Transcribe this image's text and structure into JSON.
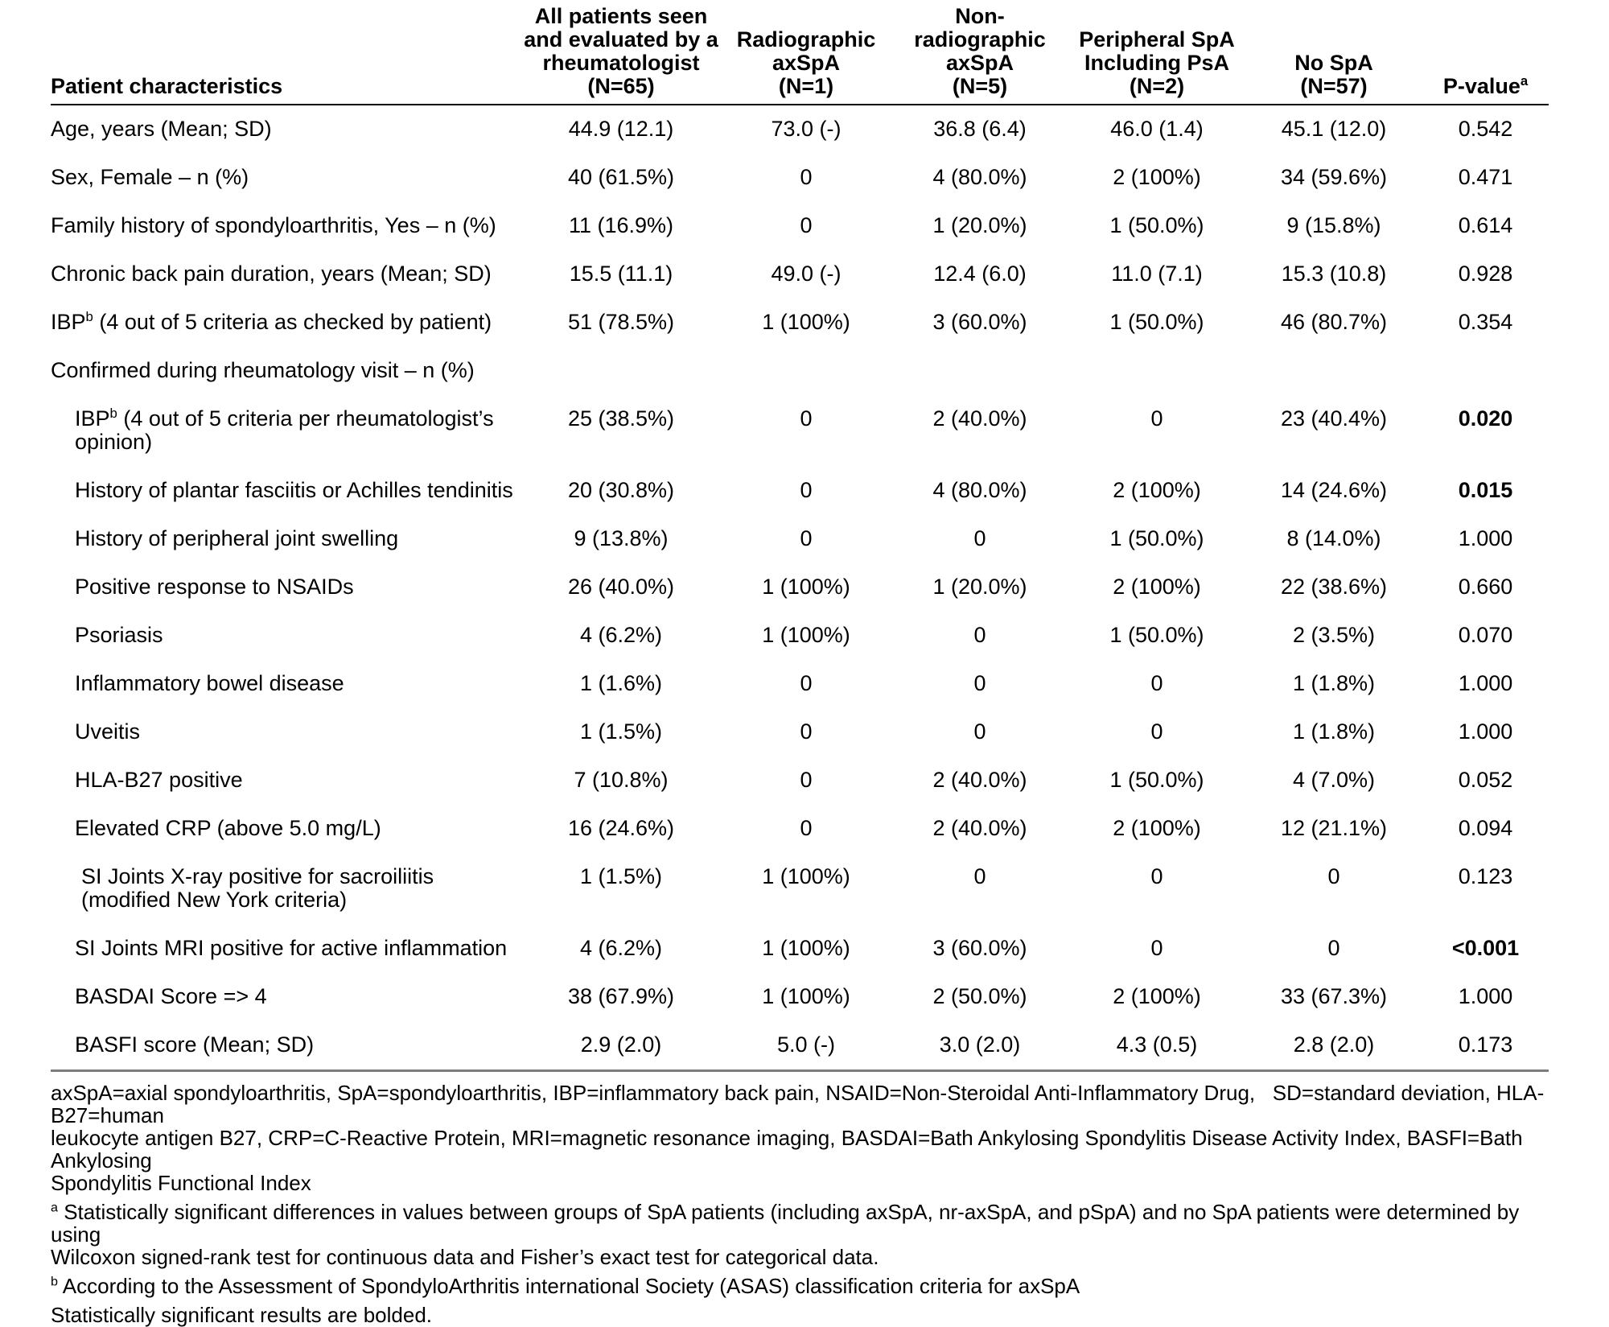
{
  "table": {
    "columns": [
      {
        "label_lines": [
          "Patient characteristics"
        ],
        "align": "left",
        "sup": ""
      },
      {
        "label_lines": [
          "All patients seen",
          "and evaluated by a",
          "rheumatologist",
          "(N=65)"
        ],
        "align": "center",
        "sup": ""
      },
      {
        "label_lines": [
          "Radiographic",
          "axSpA",
          "(N=1)"
        ],
        "align": "center",
        "sup": ""
      },
      {
        "label_lines": [
          "Non-radiographic",
          "axSpA",
          "(N=5)"
        ],
        "align": "center",
        "sup": ""
      },
      {
        "label_lines": [
          "Peripheral SpA",
          "Including PsA",
          "(N=2)"
        ],
        "align": "center",
        "sup": ""
      },
      {
        "label_lines": [
          "No SpA",
          "(N=57)"
        ],
        "align": "center",
        "sup": ""
      },
      {
        "label_lines": [
          "P-value"
        ],
        "align": "center",
        "sup": "a"
      }
    ],
    "rows": [
      {
        "label": "Age, years (Mean; SD)",
        "values": [
          "44.9 (12.1)",
          "73.0 (-)",
          "36.8 (6.4)",
          "46.0 (1.4)",
          "45.1 (12.0)"
        ],
        "p_value": "0.542",
        "p_bold": false,
        "indent": 0,
        "section": false
      },
      {
        "label": "Sex, Female – n (%)",
        "values": [
          "40 (61.5%)",
          "0",
          "4 (80.0%)",
          "2 (100%)",
          "34 (59.6%)"
        ],
        "p_value": "0.471",
        "p_bold": false,
        "indent": 0,
        "section": false
      },
      {
        "label": "Family history of spondyloarthritis, Yes – n (%)",
        "values": [
          "11 (16.9%)",
          "0",
          "1 (20.0%)",
          "1 (50.0%)",
          "9 (15.8%)"
        ],
        "p_value": "0.614",
        "p_bold": false,
        "indent": 0,
        "section": false
      },
      {
        "label": "Chronic back pain duration, years (Mean; SD)",
        "values": [
          "15.5 (11.1)",
          "49.0 (-)",
          "12.4 (6.0)",
          "11.0 (7.1)",
          "15.3 (10.8)"
        ],
        "p_value": "0.928",
        "p_bold": false,
        "indent": 0,
        "section": false
      },
      {
        "label": "IBP",
        "label_sup": "b",
        "label_rest": " (4 out of 5 criteria as checked by patient)",
        "values": [
          "51 (78.5%)",
          "1 (100%)",
          "3 (60.0%)",
          "1 (50.0%)",
          "46 (80.7%)"
        ],
        "p_value": "0.354",
        "p_bold": false,
        "indent": 0,
        "section": false
      },
      {
        "label": "Confirmed during rheumatology visit – n (%)",
        "section": true,
        "indent": 0
      },
      {
        "label": "IBP",
        "label_sup": "b",
        "label_rest": " (4 out of 5 criteria per rheumatologist’s opinion)",
        "values": [
          "25 (38.5%)",
          "0",
          "2 (40.0%)",
          "0",
          "23 (40.4%)"
        ],
        "p_value": "0.020",
        "p_bold": true,
        "indent": 1,
        "section": false
      },
      {
        "label": "History of plantar fasciitis or Achilles tendinitis",
        "values": [
          "20 (30.8%)",
          "0",
          "4 (80.0%)",
          "2 (100%)",
          "14 (24.6%)"
        ],
        "p_value": "0.015",
        "p_bold": true,
        "indent": 1,
        "section": false
      },
      {
        "label": "History of peripheral joint swelling",
        "values": [
          "9 (13.8%)",
          "0",
          "0",
          "1 (50.0%)",
          "8 (14.0%)"
        ],
        "p_value": "1.000",
        "p_bold": false,
        "indent": 1,
        "section": false
      },
      {
        "label": "Positive response to NSAIDs",
        "values": [
          "26 (40.0%)",
          "1 (100%)",
          "1 (20.0%)",
          "2 (100%)",
          "22 (38.6%)"
        ],
        "p_value": "0.660",
        "p_bold": false,
        "indent": 1,
        "section": false
      },
      {
        "label": "Psoriasis",
        "values": [
          "4 (6.2%)",
          "1 (100%)",
          "0",
          "1 (50.0%)",
          "2 (3.5%)"
        ],
        "p_value": "0.070",
        "p_bold": false,
        "indent": 1,
        "section": false
      },
      {
        "label": "Inflammatory bowel disease",
        "values": [
          "1 (1.6%)",
          "0",
          "0",
          "0",
          "1 (1.8%)"
        ],
        "p_value": "1.000",
        "p_bold": false,
        "indent": 1,
        "section": false
      },
      {
        "label": "Uveitis",
        "values": [
          "1 (1.5%)",
          "0",
          "0",
          "0",
          "1 (1.8%)"
        ],
        "p_value": "1.000",
        "p_bold": false,
        "indent": 1,
        "section": false
      },
      {
        "label": "HLA-B27 positive",
        "values": [
          "7 (10.8%)",
          "0",
          "2 (40.0%)",
          "1 (50.0%)",
          "4 (7.0%)"
        ],
        "p_value": "0.052",
        "p_bold": false,
        "indent": 1,
        "section": false
      },
      {
        "label": "Elevated CRP (above 5.0 mg/L)",
        "values": [
          "16 (24.6%)",
          "0",
          "2 (40.0%)",
          "2 (100%)",
          "12 (21.1%)"
        ],
        "p_value": "0.094",
        "p_bold": false,
        "indent": 1,
        "section": false
      },
      {
        "label": "SI Joints X-ray positive for sacroiliitis (modified New York criteria)",
        "values": [
          "1 (1.5%)",
          "1 (100%)",
          "0",
          "0",
          "0"
        ],
        "p_value": "0.123",
        "p_bold": false,
        "indent": 2,
        "section": false
      },
      {
        "label": "SI Joints MRI positive for active inflammation",
        "values": [
          "4 (6.2%)",
          "1 (100%)",
          "3 (60.0%)",
          "0",
          "0"
        ],
        "p_value": "<0.001",
        "p_bold": true,
        "indent": 1,
        "section": false
      },
      {
        "label": "BASDAI Score => 4",
        "values": [
          "38 (67.9%)",
          "1 (100%)",
          "2 (50.0%)",
          "2 (100%)",
          "33 (67.3%)"
        ],
        "p_value": "1.000",
        "p_bold": false,
        "indent": 1,
        "section": false
      },
      {
        "label": "BASFI score (Mean; SD)",
        "values": [
          "2.9 (2.0)",
          "5.0 (-)",
          "3.0 (2.0)",
          "4.3 (0.5)",
          "2.8 (2.0)"
        ],
        "p_value": "0.173",
        "p_bold": false,
        "indent": 1,
        "section": false
      }
    ],
    "footnotes": [
      {
        "sup": "",
        "lines": [
          "axSpA=axial spondyloarthritis, SpA=spondyloarthritis, IBP=inflammatory back pain, NSAID=Non-Steroidal Anti-Inflammatory Drug,   SD=standard deviation, HLA-B27=human",
          "leukocyte antigen B27, CRP=C-Reactive Protein, MRI=magnetic resonance imaging, BASDAI=Bath Ankylosing Spondylitis Disease Activity Index, BASFI=Bath Ankylosing",
          "Spondylitis Functional Index"
        ]
      },
      {
        "sup": "a",
        "lines": [
          "Statistically significant differences in values between groups of SpA patients (including axSpA, nr-axSpA, and pSpA) and no SpA patients were determined by using",
          "Wilcoxon signed-rank test for continuous data and Fisher’s exact test for categorical data."
        ]
      },
      {
        "sup": "b",
        "lines": [
          "According to the Assessment of SpondyloArthritis international Society (ASAS) classification criteria for axSpA"
        ]
      },
      {
        "sup": "",
        "lines": [
          "Statistically significant results are bolded."
        ]
      }
    ],
    "colors": {
      "text": "#000000",
      "header_rule": "#000000",
      "bottom_rule": "#7d7d7d",
      "background": "#ffffff"
    }
  }
}
